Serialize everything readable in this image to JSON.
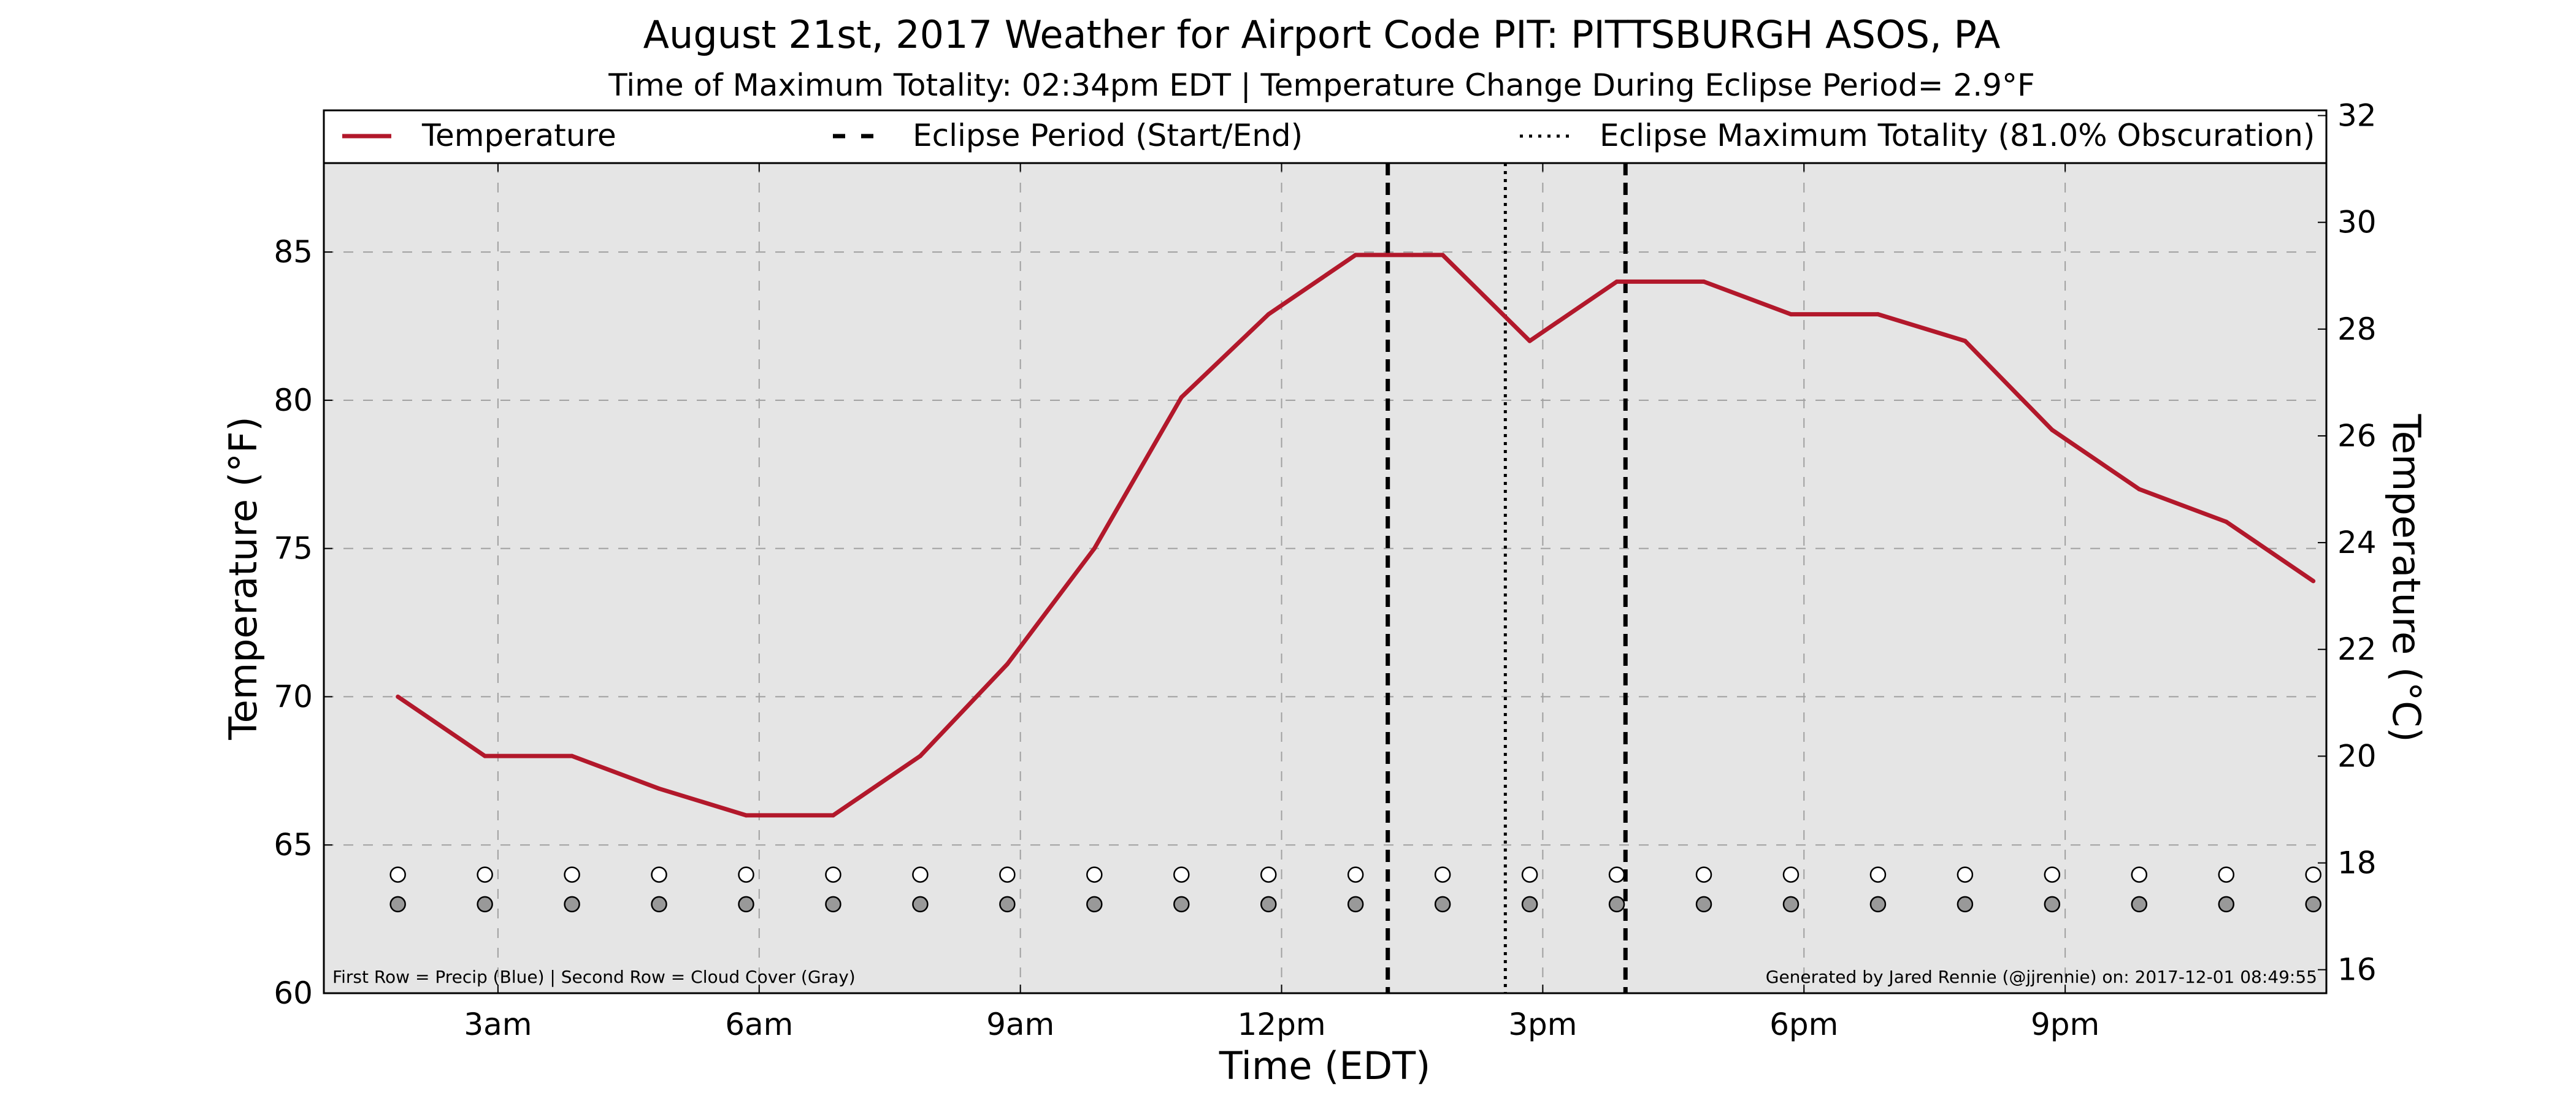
{
  "chart_data": {
    "type": "line",
    "title": "August 21st, 2017 Weather for Airport Code PIT: PITTSBURGH ASOS, PA",
    "subtitle": "Time of Maximum Totality: 02:34pm EDT | Temperature Change During Eclipse Period= 2.9°F",
    "xlabel": "Time (EDT)",
    "ylabel": "Temperature (°F)",
    "ylabel_right": "Temperature (°C)",
    "x_unit": "hours after midnight EDT",
    "xlim": [
      1,
      24
    ],
    "ylim": [
      60,
      88
    ],
    "ylim_right": [
      15.56,
      31.11
    ],
    "x_ticks": [
      {
        "x": 3,
        "label": "3am"
      },
      {
        "x": 6,
        "label": "6am"
      },
      {
        "x": 9,
        "label": "9am"
      },
      {
        "x": 12,
        "label": "12pm"
      },
      {
        "x": 15,
        "label": "3pm"
      },
      {
        "x": 18,
        "label": "6pm"
      },
      {
        "x": 21,
        "label": "9pm"
      }
    ],
    "y_ticks": [
      60,
      65,
      70,
      75,
      80,
      85
    ],
    "y_ticks_right": [
      16,
      18,
      20,
      22,
      24,
      26,
      28,
      30,
      32
    ],
    "grid": true,
    "legend_position": "top",
    "series": [
      {
        "name": "Temperature",
        "color": "#b2182b",
        "points": [
          [
            1.85,
            70.0
          ],
          [
            2.85,
            68.0
          ],
          [
            3.85,
            68.0
          ],
          [
            4.85,
            66.9
          ],
          [
            5.85,
            66.0
          ],
          [
            6.85,
            66.0
          ],
          [
            7.85,
            68.0
          ],
          [
            8.85,
            71.1
          ],
          [
            9.85,
            75.0
          ],
          [
            10.85,
            80.1
          ],
          [
            11.85,
            82.9
          ],
          [
            12.85,
            84.9
          ],
          [
            13.5,
            84.9
          ],
          [
            13.85,
            84.9
          ],
          [
            14.85,
            82.0
          ],
          [
            15.85,
            84.0
          ],
          [
            16.85,
            84.0
          ],
          [
            17.85,
            82.9
          ],
          [
            18.85,
            82.9
          ],
          [
            19.85,
            82.0
          ],
          [
            20.85,
            79.0
          ],
          [
            21.85,
            77.0
          ],
          [
            22.85,
            75.9
          ],
          [
            23.85,
            73.9
          ]
        ]
      }
    ],
    "eclipse_period": {
      "label": "Eclipse Period (Start/End)",
      "start": 13.22,
      "end": 15.95,
      "color": "#000000"
    },
    "eclipse_max": {
      "label": "Eclipse Maximum Totality (81.0% Obscuration)",
      "x": 14.57,
      "color": "#000000"
    },
    "marker_rows": {
      "x": [
        1.85,
        2.85,
        3.85,
        4.85,
        5.85,
        6.85,
        7.85,
        8.85,
        9.85,
        10.85,
        11.85,
        12.85,
        13.85,
        14.85,
        15.85,
        16.85,
        17.85,
        18.85,
        19.85,
        20.85,
        21.85,
        22.85,
        23.85
      ],
      "precip_y": 64.0,
      "cloud_y": 63.0,
      "precip_color": "#ffffff",
      "cloud_color": "#999999"
    },
    "footnote_left": "First Row = Precip (Blue) | Second Row = Cloud Cover (Gray)",
    "footnote_right": "Generated by Jared Rennie (@jjrennie) on: 2017-12-01 08:49:55"
  }
}
